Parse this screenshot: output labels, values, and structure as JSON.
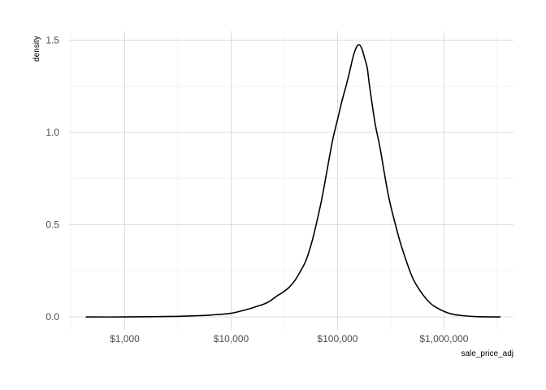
{
  "chart_data": {
    "type": "line",
    "xlabel": "sale_price_adj",
    "ylabel": "density",
    "x_scale": "log10",
    "xlim": [
      300,
      4500000
    ],
    "ylim": [
      -0.07,
      1.55
    ],
    "x_ticks": [
      {
        "value": 1000,
        "label": "$1,000"
      },
      {
        "value": 10000,
        "label": "$10,000"
      },
      {
        "value": 100000,
        "label": "$100,000"
      },
      {
        "value": 1000000,
        "label": "$1,000,000"
      }
    ],
    "x_minor_ticks": [
      316,
      3162,
      31623,
      316228,
      3162278
    ],
    "y_ticks": [
      {
        "value": 0.0,
        "label": "0.0"
      },
      {
        "value": 0.5,
        "label": "0.5"
      },
      {
        "value": 1.0,
        "label": "1.0"
      },
      {
        "value": 1.5,
        "label": "1.5"
      }
    ],
    "y_minor_ticks": [
      0.25,
      0.75,
      1.25
    ],
    "grid": true,
    "line_color": "#000000",
    "grid_major_color": "#d9d9d9",
    "grid_minor_color": "#ececec",
    "series": [
      {
        "x": [
          430,
          1000,
          2000,
          3000,
          4000,
          5000,
          6000,
          7000,
          8000,
          10000,
          12000,
          15000,
          18000,
          20000,
          23000,
          25000,
          28000,
          30000,
          35000,
          40000,
          45000,
          50000,
          55000,
          60000,
          70000,
          80000,
          90000,
          100000,
          110000,
          120000,
          130000,
          140000,
          150000,
          160000,
          170000,
          180000,
          190000,
          200000,
          225000,
          250000,
          300000,
          350000,
          400000,
          500000,
          600000,
          700000,
          800000,
          1000000,
          1200000,
          1500000,
          2000000,
          3400000
        ],
        "y": [
          0.0,
          0.0,
          0.002,
          0.003,
          0.005,
          0.007,
          0.009,
          0.012,
          0.014,
          0.02,
          0.03,
          0.045,
          0.06,
          0.068,
          0.085,
          0.1,
          0.12,
          0.13,
          0.16,
          0.2,
          0.25,
          0.3,
          0.37,
          0.45,
          0.62,
          0.8,
          0.96,
          1.07,
          1.17,
          1.25,
          1.33,
          1.41,
          1.46,
          1.475,
          1.45,
          1.4,
          1.35,
          1.25,
          1.05,
          0.92,
          0.66,
          0.5,
          0.38,
          0.22,
          0.14,
          0.09,
          0.06,
          0.03,
          0.015,
          0.007,
          0.002,
          0.0
        ]
      }
    ]
  }
}
